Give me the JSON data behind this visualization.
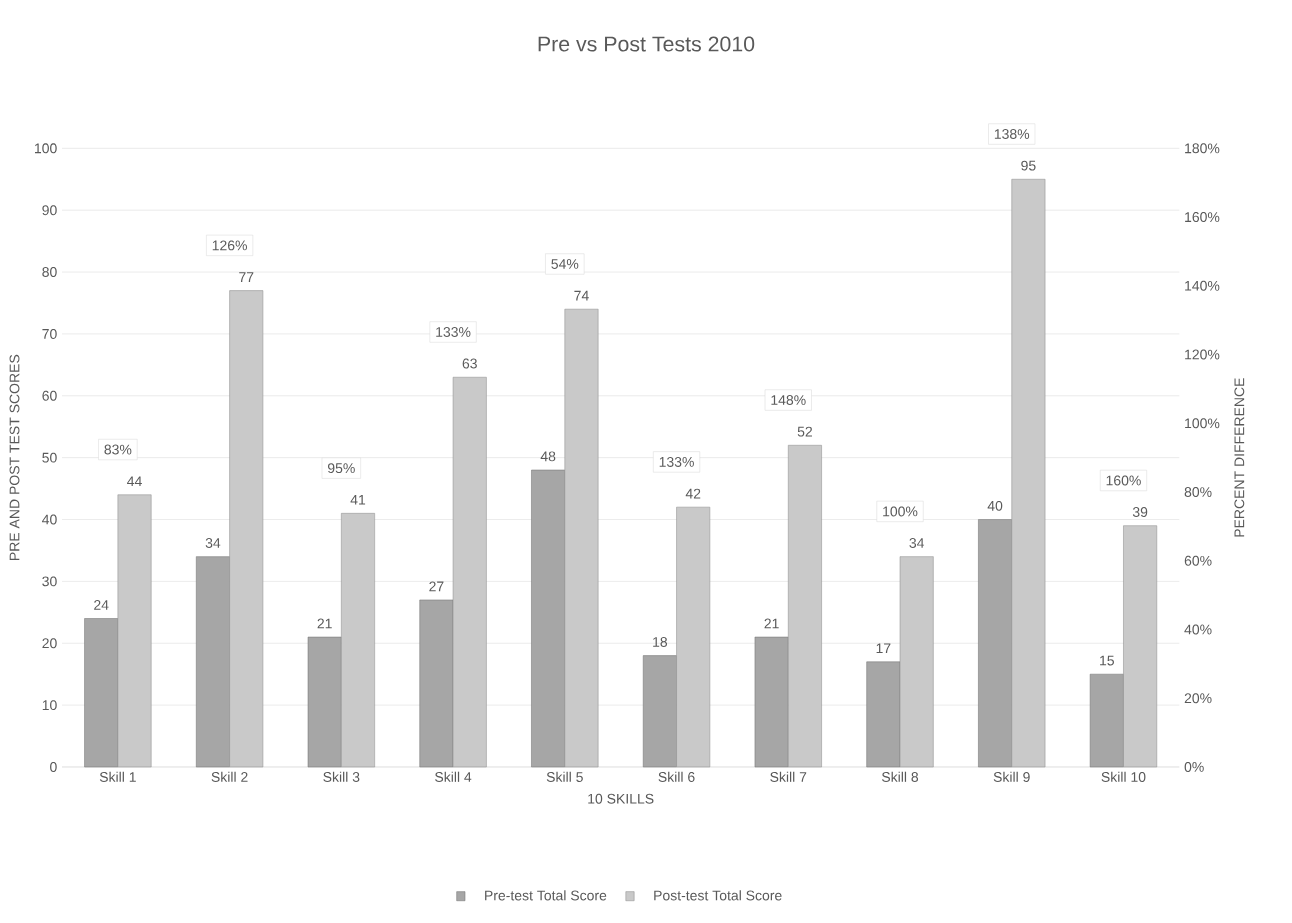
{
  "chart_data": {
    "type": "bar",
    "title": "Pre vs Post Tests 2010",
    "xlabel": "10 SKILLS",
    "ylabel": "PRE AND POST TEST SCORES",
    "y2label": "PERCENT DIFFERENCE",
    "categories": [
      "Skill 1",
      "Skill 2",
      "Skill 3",
      "Skill 4",
      "Skill 5",
      "Skill 6",
      "Skill 7",
      "Skill 8",
      "Skill 9",
      "Skill 10"
    ],
    "series": [
      {
        "name": "Pre-test Total Score",
        "color": "#a6a6a6",
        "values": [
          24,
          34,
          21,
          27,
          48,
          18,
          21,
          17,
          40,
          15
        ]
      },
      {
        "name": "Post-test Total Score",
        "color": "#c9c9c9",
        "values": [
          44,
          77,
          41,
          63,
          74,
          42,
          52,
          34,
          95,
          39
        ]
      }
    ],
    "ylim": [
      0,
      100
    ],
    "yticks": [
      0,
      10,
      20,
      30,
      40,
      50,
      60,
      70,
      80,
      90,
      100
    ],
    "y2lim": [
      0,
      180
    ],
    "y2ticks": [
      {
        "value": 0,
        "label": "0%"
      },
      {
        "value": 20,
        "label": "20%"
      },
      {
        "value": 40,
        "label": "40%"
      },
      {
        "value": 60,
        "label": "60%"
      },
      {
        "value": 80,
        "label": "80%"
      },
      {
        "value": 100,
        "label": "100%"
      },
      {
        "value": 120,
        "label": "120%"
      },
      {
        "value": 140,
        "label": "140%"
      },
      {
        "value": 160,
        "label": "160%"
      },
      {
        "value": 180,
        "label": "180%"
      }
    ],
    "annotations": [
      "83%",
      "126%",
      "95%",
      "133%",
      "54%",
      "133%",
      "148%",
      "100%",
      "138%",
      "160%"
    ],
    "data_labels": true,
    "grid": "y",
    "legend": "bottom"
  }
}
